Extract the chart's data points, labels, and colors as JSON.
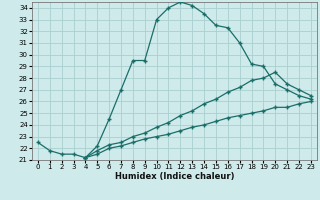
{
  "xlabel": "Humidex (Indice chaleur)",
  "xlim": [
    -0.5,
    23.5
  ],
  "ylim": [
    21,
    34.5
  ],
  "xticks": [
    0,
    1,
    2,
    3,
    4,
    5,
    6,
    7,
    8,
    9,
    10,
    11,
    12,
    13,
    14,
    15,
    16,
    17,
    18,
    19,
    20,
    21,
    22,
    23
  ],
  "yticks": [
    21,
    22,
    23,
    24,
    25,
    26,
    27,
    28,
    29,
    30,
    31,
    32,
    33,
    34
  ],
  "bg_color": "#ceeaea",
  "line_color": "#1a6e6a",
  "grid_color": "#aacfcf",
  "line1_x": [
    0,
    1,
    2,
    3,
    4,
    5,
    6,
    7,
    8,
    9,
    10,
    11,
    12,
    13,
    14,
    15,
    16,
    17,
    18,
    19,
    20,
    21,
    22,
    23
  ],
  "line1_y": [
    22.5,
    21.8,
    21.5,
    21.5,
    21.2,
    22.2,
    24.5,
    27.0,
    29.5,
    29.5,
    33.0,
    34.0,
    34.5,
    34.2,
    33.5,
    32.5,
    32.3,
    31.0,
    29.2,
    29.0,
    27.5,
    27.0,
    26.5,
    26.2
  ],
  "line2_x": [
    4,
    5,
    6,
    7,
    8,
    9,
    10,
    11,
    12,
    13,
    14,
    15,
    16,
    17,
    18,
    19,
    20,
    21,
    22,
    23
  ],
  "line2_y": [
    21.2,
    21.8,
    22.3,
    22.5,
    23.0,
    23.3,
    23.8,
    24.2,
    24.8,
    25.2,
    25.8,
    26.2,
    26.8,
    27.2,
    27.8,
    28.0,
    28.5,
    27.5,
    27.0,
    26.5
  ],
  "line3_x": [
    4,
    5,
    6,
    7,
    8,
    9,
    10,
    11,
    12,
    13,
    14,
    15,
    16,
    17,
    18,
    19,
    20,
    21,
    22,
    23
  ],
  "line3_y": [
    21.2,
    21.5,
    22.0,
    22.2,
    22.5,
    22.8,
    23.0,
    23.2,
    23.5,
    23.8,
    24.0,
    24.3,
    24.6,
    24.8,
    25.0,
    25.2,
    25.5,
    25.5,
    25.8,
    26.0
  ]
}
